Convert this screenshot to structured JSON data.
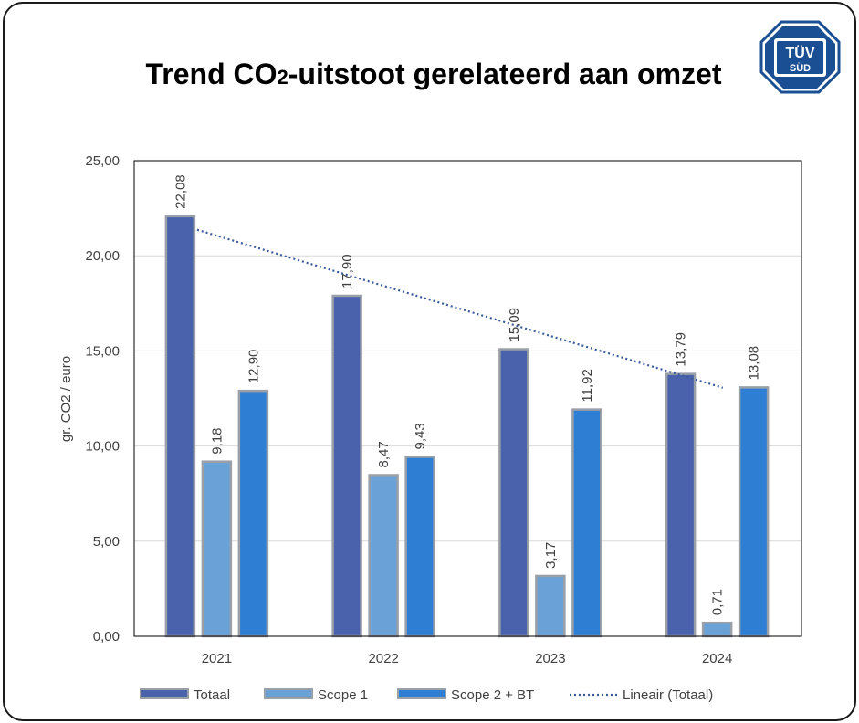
{
  "chart_data": {
    "type": "bar",
    "title_main": "Trend CO",
    "title_sub": "2",
    "title_rest": "-uitstoot gerelateerd aan omzet",
    "ylabel": "gr. CO2 / euro",
    "xlabel": "",
    "categories": [
      "2021",
      "2022",
      "2023",
      "2024"
    ],
    "ylim": [
      0,
      25
    ],
    "yticks": [
      0,
      5,
      10,
      15,
      20,
      25
    ],
    "ytick_labels": [
      "0,00",
      "5,00",
      "10,00",
      "15,00",
      "20,00",
      "25,00"
    ],
    "series": [
      {
        "name": "Totaal",
        "values": [
          22.08,
          17.9,
          15.09,
          13.79
        ],
        "labels": [
          "22,08",
          "17,90",
          "15,09",
          "13,79"
        ],
        "color": "#4a62ab"
      },
      {
        "name": "Scope 1",
        "values": [
          9.18,
          8.47,
          3.17,
          0.71
        ],
        "labels": [
          "9,18",
          "8,47",
          "3,17",
          "0,71"
        ],
        "color": "#6aa1d6"
      },
      {
        "name": "Scope 2 + BT",
        "values": [
          12.9,
          9.43,
          11.92,
          13.08
        ],
        "labels": [
          "12,90",
          "9,43",
          "11,92",
          "13,08"
        ],
        "color": "#2e7fd4"
      }
    ],
    "trendline": {
      "name": "Lineair (Totaal)",
      "color": "#3a5a9b"
    },
    "grid": true,
    "legend_position": "bottom"
  },
  "logo": {
    "line1": "TÜV",
    "line2": "SÜD",
    "color": "#1b4f93"
  }
}
